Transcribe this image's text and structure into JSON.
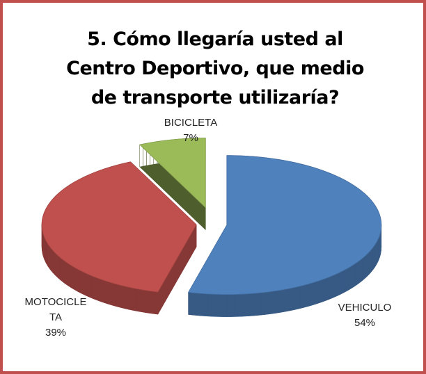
{
  "chart_data": {
    "type": "pie",
    "title": "5. Cómo llegaría usted al Centro Deportivo, que medio de transporte utilizaría?",
    "categories": [
      "VEHICULO",
      "MOTOCICLETA",
      "BICICLETA"
    ],
    "values": [
      54,
      39,
      7
    ],
    "value_labels": [
      "54%",
      "39%",
      "7%"
    ],
    "colors": [
      "#4f81bd",
      "#c0504d",
      "#9bbb59"
    ]
  }
}
